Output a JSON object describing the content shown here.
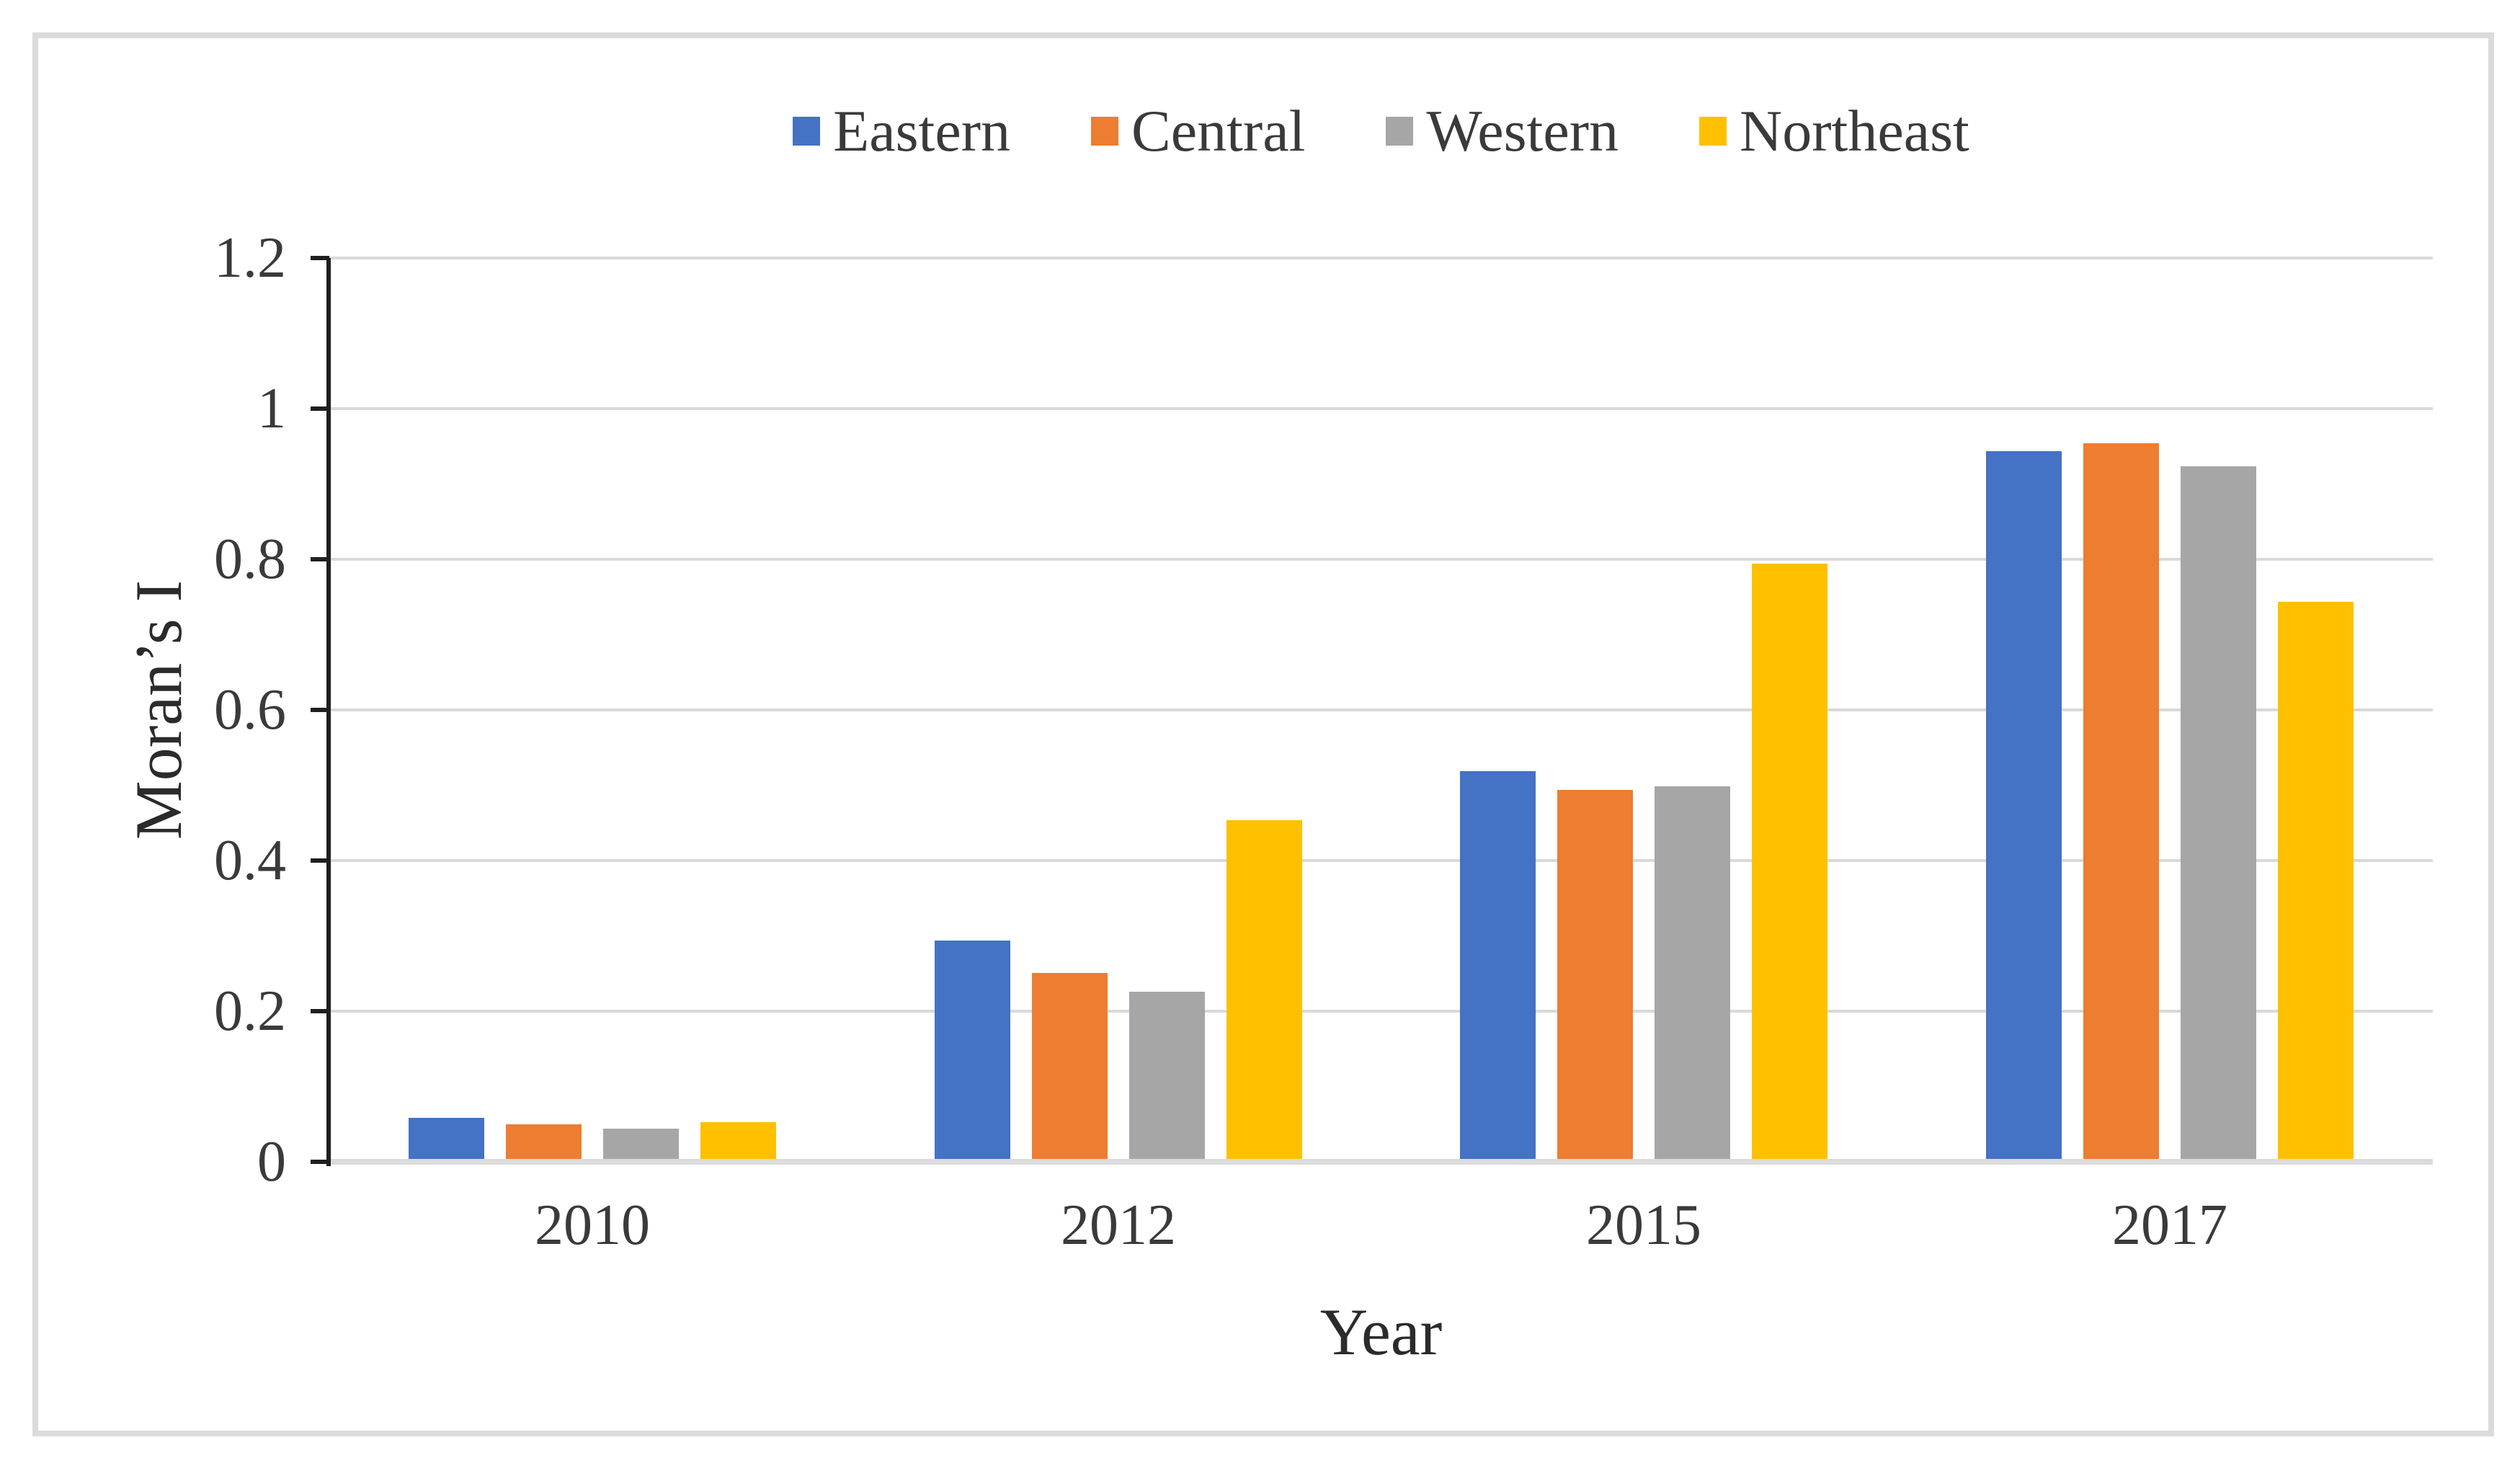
{
  "chart_data": {
    "type": "bar",
    "title": "",
    "categories": [
      "2010",
      "2012",
      "2015",
      "2017"
    ],
    "series": [
      {
        "name": "Eastern",
        "color": "#4472C4",
        "values": [
          0.055,
          0.29,
          0.515,
          0.94
        ]
      },
      {
        "name": "Central",
        "color": "#ED7D31",
        "values": [
          0.046,
          0.247,
          0.49,
          0.95
        ]
      },
      {
        "name": "Western",
        "color": "#A6A6A6",
        "values": [
          0.04,
          0.222,
          0.495,
          0.92
        ]
      },
      {
        "name": "Northeast",
        "color": "#FFC000",
        "values": [
          0.049,
          0.45,
          0.79,
          0.74
        ]
      }
    ],
    "xlabel": "Year",
    "ylabel": "Moran’s I",
    "ylim": [
      0,
      1.2
    ],
    "ytick_step": 0.2,
    "yticks": [
      "0",
      "0.2",
      "0.4",
      "0.6",
      "0.8",
      "1",
      "1.2"
    ],
    "grid": true,
    "legend_position": "top-center",
    "plot_colors": {
      "gridline": "#D9D9D9",
      "baseline": "#DBDBDB",
      "axis_line": "#1F1F1F",
      "tick_label": "#3A3A3A",
      "axis_title": "#2B2B2B",
      "frame_border": "#DBDBDB",
      "background": "#FFFFFF"
    }
  }
}
